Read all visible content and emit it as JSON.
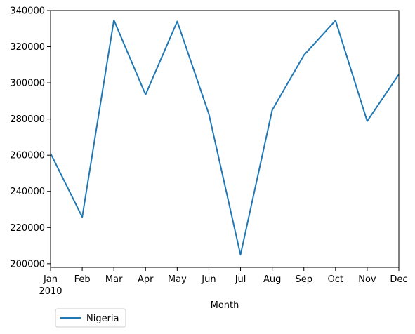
{
  "chart_data": {
    "type": "line",
    "title": "",
    "xlabel": "Month",
    "ylabel": "",
    "categories": [
      "Jan",
      "Feb",
      "Mar",
      "Apr",
      "May",
      "Jun",
      "Jul",
      "Aug",
      "Sep",
      "Oct",
      "Nov",
      "Dec"
    ],
    "year_label": "2010",
    "ylim": [
      198000,
      340000
    ],
    "yticks": [
      200000,
      220000,
      240000,
      260000,
      280000,
      300000,
      320000,
      340000
    ],
    "grid": false,
    "legend_position": "below-left",
    "series": [
      {
        "name": "Nigeria",
        "color": "#1f77b4",
        "values": [
          261000,
          225800,
          334700,
          293500,
          334000,
          282700,
          204900,
          284900,
          315300,
          334500,
          278800,
          304700
        ]
      }
    ]
  }
}
